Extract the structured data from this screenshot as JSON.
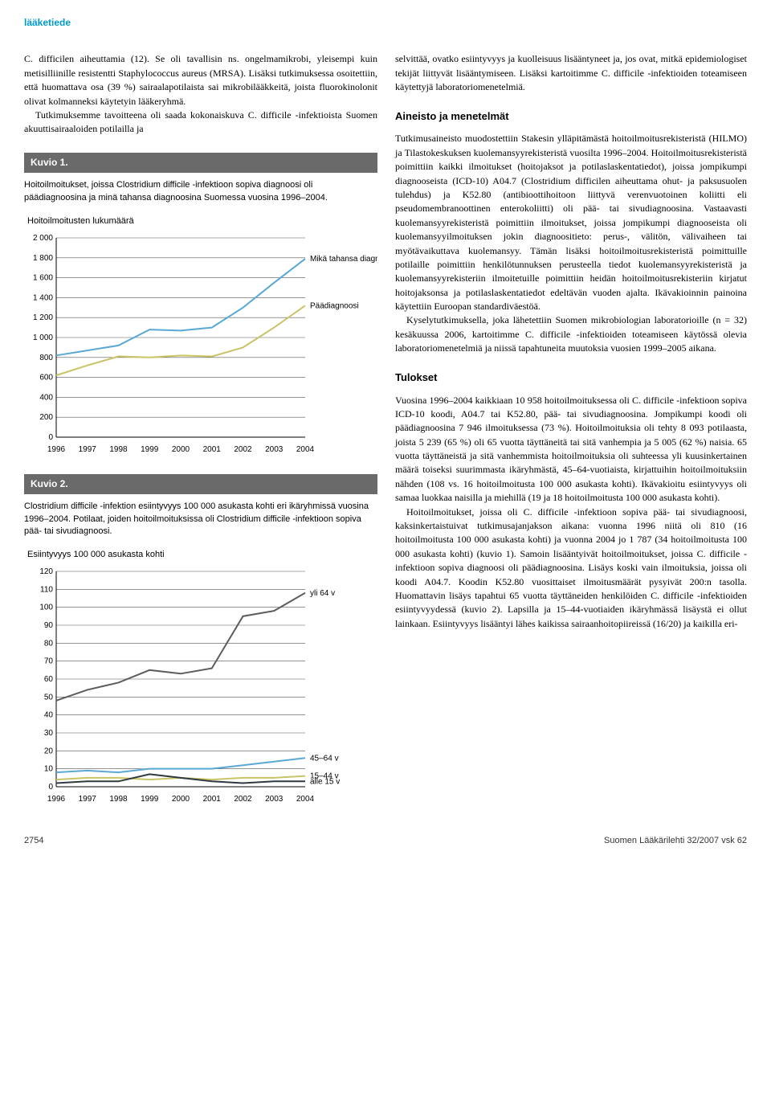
{
  "header": {
    "section": "lääketiede"
  },
  "left": {
    "para1": "C. difficilen aiheuttamia (12). Se oli tavallisin ns. ongelmamikrobi, yleisempi kuin metisilliinille resistentti Staphylococcus aureus (MRSA). Lisäksi tutkimuksessa osoitettiin, että huomattava osa (39 %) sairaalapotilaista sai mikrobilääkkeitä, joista fluorokinolonit olivat kolmanneksi käytetyin lääkeryhmä.",
    "para2": "Tutkimuksemme tavoitteena oli saada kokonaiskuva C. difficile -infektioista Suomen akuuttisairaaloiden potilailla ja"
  },
  "fig1": {
    "label": "Kuvio 1.",
    "caption": "Hoitoilmoitukset, joissa Clostridium difficile -infektioon sopiva diagnoosi oli päädiagnoosina ja minä tahansa diagnoosina Suomessa vuosina 1996–2004.",
    "ytitle": "Hoitoilmoitusten lukumäärä",
    "x_labels": [
      "1996",
      "1997",
      "1998",
      "1999",
      "2000",
      "2001",
      "2002",
      "2003",
      "2004"
    ],
    "y_ticks": [
      0,
      200,
      400,
      600,
      800,
      1000,
      1200,
      1400,
      1600,
      1800,
      2000
    ],
    "ylim": [
      0,
      2000
    ],
    "series": [
      {
        "name": "Mikä tahansa diagnoosi",
        "color": "#5aa8d6",
        "values": [
          820,
          870,
          920,
          1080,
          1070,
          1100,
          1300,
          1550,
          1790
        ]
      },
      {
        "name": "Päädiagnoosi",
        "color": "#c9c466",
        "values": [
          620,
          720,
          810,
          800,
          820,
          810,
          900,
          1100,
          1320
        ]
      }
    ],
    "grid_color": "#555555",
    "axis_color": "#000000",
    "line_width": 2,
    "font_size": 10,
    "background": "#ffffff"
  },
  "fig2": {
    "label": "Kuvio 2.",
    "caption": "Clostridium difficile -infektion esiintyvyys 100 000 asukasta kohti eri ikäryhmissä vuosina 1996–2004. Potilaat, joiden hoitoilmoituksissa oli Clostridium difficile -infektioon sopiva pää- tai sivudiagnoosi.",
    "ytitle": "Esiintyvyys 100 000 asukasta kohti",
    "x_labels": [
      "1996",
      "1997",
      "1998",
      "1999",
      "2000",
      "2001",
      "2002",
      "2003",
      "2004"
    ],
    "y_ticks": [
      0,
      10,
      20,
      30,
      40,
      50,
      60,
      70,
      80,
      90,
      100,
      110,
      120
    ],
    "ylim": [
      0,
      120
    ],
    "series": [
      {
        "name": "yli 64 v",
        "color": "#5a5e61",
        "values": [
          48,
          54,
          58,
          65,
          63,
          66,
          95,
          98,
          108
        ]
      },
      {
        "name": "45–64 v",
        "color": "#5aa8d6",
        "values": [
          8,
          9,
          8,
          10,
          10,
          10,
          12,
          14,
          16
        ]
      },
      {
        "name": "15–44 v",
        "color": "#c9c466",
        "values": [
          4,
          5,
          5,
          4,
          5,
          4,
          5,
          5,
          6
        ]
      },
      {
        "name": "alle 15 v",
        "color": "#2f3a40",
        "values": [
          2,
          3,
          3,
          7,
          5,
          3,
          2,
          3,
          3
        ]
      }
    ],
    "grid_color": "#555555",
    "axis_color": "#000000",
    "line_width": 2,
    "font_size": 10,
    "background": "#ffffff"
  },
  "right": {
    "para1": "selvittää, ovatko esiintyvyys ja kuolleisuus lisääntyneet ja, jos ovat, mitkä epidemiologiset tekijät liittyvät lisääntymiseen. Lisäksi kartoitimme C. difficile -infektioiden toteamiseen käytettyjä laboratoriomenetelmiä.",
    "head1": "Aineisto ja menetelmät",
    "para2": "Tutkimusaineisto muodostettiin Stakesin ylläpitämästä hoitoilmoitusrekisteristä (HILMO) ja Tilastokeskuksen kuolemansyyrekisteristä vuosilta 1996–2004. Hoitoilmoitusrekisteristä poimittiin kaikki ilmoitukset (hoitojaksot ja potilaslaskentatiedot), joissa jompikumpi diagnooseista (ICD-10) A04.7 (Clostridium difficilen aiheuttama ohut- ja paksusuolen tulehdus) ja K52.80 (antibioottihoitoon liittyvä verenvuotoinen koliitti eli pseudomembranoottinen enterokoliitti) oli pää- tai sivudiagnoosina. Vastaavasti kuolemansyyrekisteristä poimittiin ilmoitukset, joissa jompikumpi diagnooseista oli kuolemansyyilmoituksen jokin diagnoositieto: perus-, välitön, välivaiheen tai myötävaikuttava kuolemansyy. Tämän lisäksi hoitoilmoitusrekisteristä poimittuille potilaille poimittiin henkilötunnuksen perusteella tiedot kuolemansyyrekisteristä ja kuolemansyyrekisteriin ilmoitetuille poimittiin heidän hoitoilmoitusrekisteriin kirjatut hoitojaksonsa ja potilaslaskentatiedot edeltävän vuoden ajalta. Ikävakioinnin painoina käytettiin Euroopan standardiväestöä.",
    "para3": "Kyselytutkimuksella, joka lähetettiin Suomen mikrobiologian laboratorioille (n = 32) kesäkuussa 2006, kartoitimme C. difficile -infektioiden toteamiseen käytössä olevia laboratoriomenetelmiä ja niissä tapahtuneita muutoksia vuosien 1999–2005 aikana.",
    "head2": "Tulokset",
    "para4": "Vuosina 1996–2004 kaikkiaan 10 958 hoitoilmoituksessa oli C. difficile -infektioon sopiva ICD-10 koodi, A04.7 tai K52.80, pää- tai sivudiagnoosina. Jompikumpi koodi oli päädiagnoosina 7 946 ilmoituksessa (73 %). Hoitoilmoituksia oli tehty 8 093 potilaasta, joista 5 239 (65 %) oli 65 vuotta täyttäneitä tai sitä vanhempia ja 5 005 (62 %) naisia. 65 vuotta täyttäneistä ja sitä vanhemmista hoitoilmoituksia oli suhteessa yli kuusinkertainen määrä toiseksi suurimmasta ikäryhmästä, 45–64-vuotiaista, kirjattuihin hoitoilmoituksiin nähden (108 vs. 16 hoitoilmoitusta 100 000 asukasta kohti). Ikävakioitu esiintyvyys oli samaa luokkaa naisilla ja miehillä (19 ja 18 hoitoilmoitusta 100 000 asukasta kohti).",
    "para5": "Hoitoilmoitukset, joissa oli C. difficile -infektioon sopiva pää- tai sivudiagnoosi, kaksinkertaistuivat tutkimusajanjakson aikana: vuonna 1996 niitä oli 810 (16 hoitoilmoitusta 100 000 asukasta kohti) ja vuonna 2004 jo 1 787 (34 hoitoilmoitusta 100 000 asukasta kohti) (kuvio 1). Samoin lisääntyivät hoitoilmoitukset, joissa C. difficile -infektioon sopiva diagnoosi oli päädiagnoosina. Lisäys koski vain ilmoituksia, joissa oli koodi A04.7. Koodin K52.80 vuosittaiset ilmoitusmäärät pysyivät 200:n tasolla. Huomattavin lisäys tapahtui 65 vuotta täyttäneiden henkilöiden C. difficile -infektioiden esiintyvyydessä (kuvio 2). Lapsilla ja 15–44-vuotiaiden ikäryhmässä lisäystä ei ollut lainkaan. Esiintyvyys lisääntyi lähes kaikissa sairaanhoitopiireissä (16/20) ja kaikilla eri-"
  },
  "footer": {
    "page": "2754",
    "journal": "Suomen Lääkärilehti 32/2007 vsk 62"
  }
}
